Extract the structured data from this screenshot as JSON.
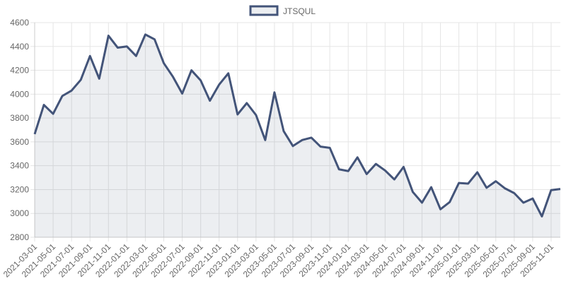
{
  "chart_data": {
    "type": "line",
    "categories": [
      "2021-03-01",
      null,
      "2021-05-01",
      null,
      "2021-07-01",
      null,
      "2021-09-01",
      null,
      "2021-11-01",
      null,
      "2022-01-01",
      null,
      "2022-03-01",
      null,
      "2022-05-01",
      null,
      "2022-07-01",
      null,
      "2022-09-01",
      null,
      "2022-11-01",
      null,
      "2023-01-01",
      null,
      "2023-03-01",
      null,
      "2023-05-01",
      null,
      "2023-07-01",
      null,
      "2023-09-01",
      null,
      "2023-11-01",
      null,
      "2024-01-01",
      null,
      "2024-03-01",
      null,
      "2024-05-01",
      null,
      "2024-07-01",
      null,
      "2024-09-01",
      null,
      "2024-11-01",
      null,
      "2025-01-01",
      null,
      "2025-03-01",
      null,
      "2025-05-01",
      null,
      "2025-07-01",
      null,
      "2025-09-01",
      null,
      "2025-11-01",
      null
    ],
    "series": [
      {
        "name": "JTSQUL",
        "color": "#435479",
        "fill": "rgba(67,84,121,0.1)",
        "values": [
          3665,
          3910,
          3835,
          3985,
          4030,
          4120,
          4320,
          4130,
          4490,
          4390,
          4400,
          4320,
          4500,
          4460,
          4260,
          4145,
          4005,
          4200,
          4115,
          3945,
          4080,
          4175,
          3830,
          3925,
          3825,
          3615,
          4015,
          3690,
          3565,
          3615,
          3635,
          3560,
          3550,
          3370,
          3355,
          3470,
          3330,
          3415,
          3360,
          3285,
          3390,
          3180,
          3090,
          3220,
          3035,
          3095,
          3255,
          3250,
          3345,
          3215,
          3270,
          3210,
          3170,
          3090,
          3125,
          2975,
          3195,
          3205
        ]
      }
    ],
    "ylim": [
      2800,
      4600
    ],
    "yticks": [
      2800,
      3000,
      3200,
      3400,
      3600,
      3800,
      4000,
      4200,
      4400,
      4600
    ],
    "grid": true
  }
}
